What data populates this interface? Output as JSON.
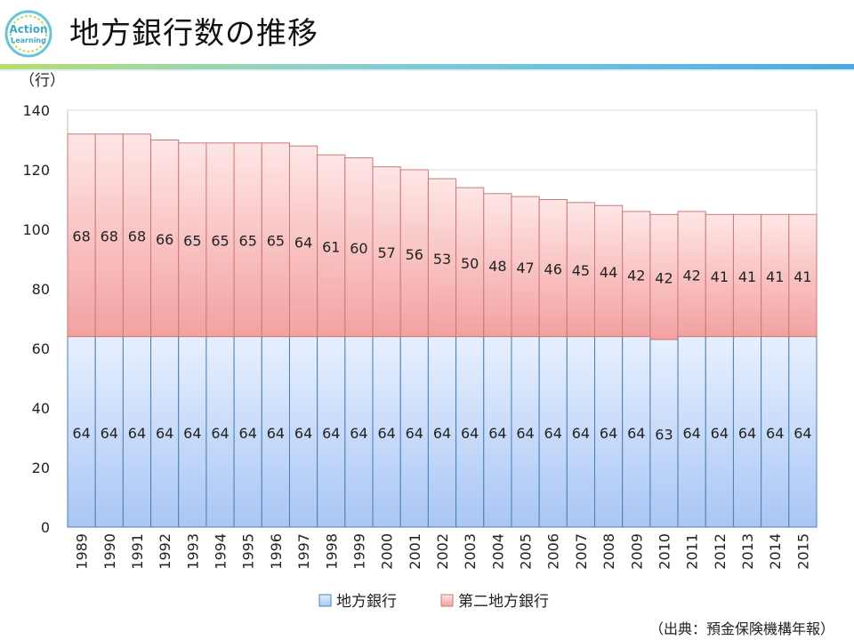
{
  "page": {
    "title": "地方銀行数の推移",
    "logo_text_top": "Action",
    "logo_text_bottom": "Learning",
    "source": "（出典：預金保険機構年報）"
  },
  "colors": {
    "regional_top": "#e8f0ff",
    "regional_bottom": "#a9c6f4",
    "second_top": "#ffe6e6",
    "second_bottom": "#f3a1a1",
    "border": "#4a7fb5",
    "border_red": "#c87a7a"
  },
  "chart_data": {
    "type": "bar",
    "stacked": true,
    "y_unit_label": "（行）",
    "ylim": [
      0,
      140
    ],
    "yticks": [
      0,
      20,
      40,
      60,
      80,
      100,
      120,
      140
    ],
    "categories": [
      "1989",
      "1990",
      "1991",
      "1992",
      "1993",
      "1994",
      "1995",
      "1996",
      "1997",
      "1998",
      "1999",
      "2000",
      "2001",
      "2002",
      "2003",
      "2004",
      "2005",
      "2006",
      "2007",
      "2008",
      "2009",
      "2010",
      "2011",
      "2012",
      "2013",
      "2014",
      "2015"
    ],
    "series": [
      {
        "name": "地方銀行",
        "values": [
          64,
          64,
          64,
          64,
          64,
          64,
          64,
          64,
          64,
          64,
          64,
          64,
          64,
          64,
          64,
          64,
          64,
          64,
          64,
          64,
          64,
          63,
          64,
          64,
          64,
          64,
          64
        ]
      },
      {
        "name": "第二地方銀行",
        "values": [
          68,
          68,
          68,
          66,
          65,
          65,
          65,
          65,
          64,
          61,
          60,
          57,
          56,
          53,
          50,
          48,
          47,
          46,
          45,
          44,
          42,
          42,
          42,
          41,
          41,
          41,
          41
        ]
      }
    ],
    "legend": [
      "地方銀行",
      "第二地方銀行"
    ],
    "legend_position": "bottom-center",
    "grid": true
  }
}
